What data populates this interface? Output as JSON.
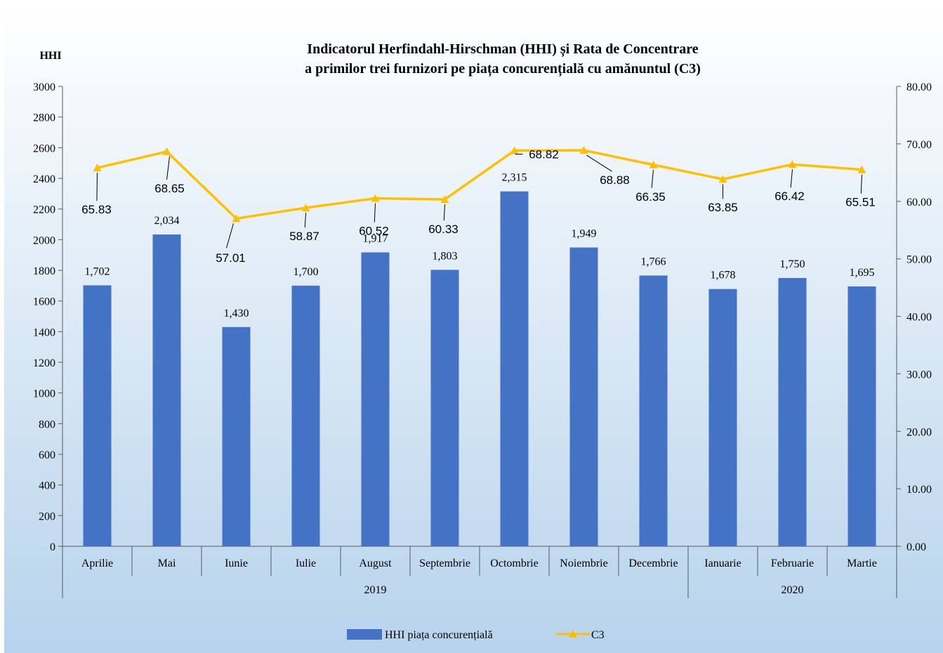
{
  "chart_data": {
    "type": "bar",
    "title_line1": "Indicatorul Herfindahl-Hirschman (HHI) și Rata de Concentrare",
    "title_line2": "a primilor trei furnizori pe piața concurențială cu amănuntul (C3)",
    "ylabel": "HHI",
    "categories": [
      "Aprilie",
      "Mai",
      "Iunie",
      "Iulie",
      "August",
      "Septembrie",
      "Octombrie",
      "Noiembrie",
      "Decembrie",
      "Ianuarie",
      "Februarie",
      "Martie"
    ],
    "year_groups": [
      {
        "label": "2019",
        "count": 9
      },
      {
        "label": "2020",
        "count": 3
      }
    ],
    "series": [
      {
        "name": "HHI piața concurențială",
        "type": "bar",
        "axis": "left",
        "color": "#4472C4",
        "values": [
          1702,
          2034,
          1430,
          1700,
          1917,
          1803,
          2315,
          1949,
          1766,
          1678,
          1750,
          1695
        ],
        "labels": [
          "1,702",
          "2,034",
          "1,430",
          "1,700",
          "1,917",
          "1,803",
          "2,315",
          "1,949",
          "1,766",
          "1,678",
          "1,750",
          "1,695"
        ]
      },
      {
        "name": "C3",
        "type": "line",
        "axis": "right",
        "color": "#FFC000",
        "values": [
          65.83,
          68.65,
          57.01,
          58.87,
          60.52,
          60.33,
          68.82,
          68.88,
          66.35,
          63.85,
          66.42,
          65.51
        ],
        "labels": [
          "65.83",
          "68.65",
          "57.01",
          "58.87",
          "60.52",
          "60.33",
          "68.82",
          "68.88",
          "66.35",
          "63.85",
          "66.42",
          "65.51"
        ]
      }
    ],
    "left_axis": {
      "min": 0,
      "max": 3000,
      "ticks": [
        "0",
        "200",
        "400",
        "600",
        "800",
        "1000",
        "1200",
        "1400",
        "1600",
        "1800",
        "2000",
        "2200",
        "2400",
        "2600",
        "2800",
        "3000"
      ]
    },
    "right_axis": {
      "min": 0,
      "max": 80,
      "ticks": [
        "0.00",
        "10.00",
        "20.00",
        "30.00",
        "40.00",
        "50.00",
        "60.00",
        "70.00",
        "80.00"
      ]
    },
    "grid": false,
    "legend_position": "bottom",
    "background_gradient": [
      "#ffffff",
      "#b7d3ec"
    ]
  }
}
